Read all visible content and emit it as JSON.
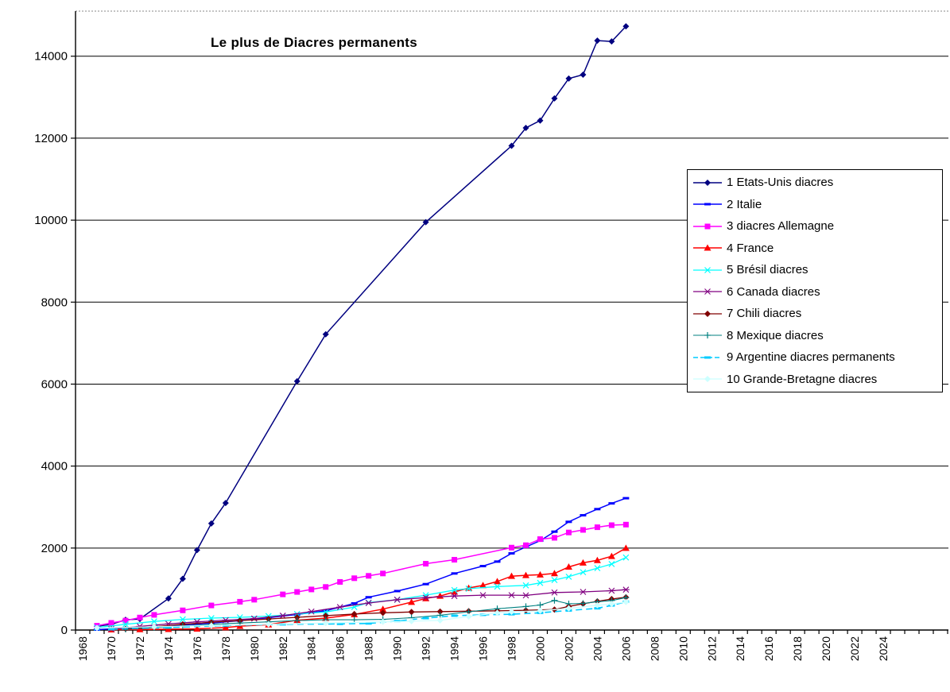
{
  "chart_data": {
    "type": "line",
    "title": "Le plus de Diacres permanents",
    "x_axis_years": [
      1968,
      2028
    ],
    "x_tick_labels": [
      "1968",
      "1970",
      "1972",
      "1974",
      "1976",
      "1978",
      "1980",
      "1982",
      "1984",
      "1986",
      "1988",
      "1990",
      "1992",
      "1994",
      "1996",
      "1998",
      "2000",
      "2002",
      "2004",
      "2006",
      "2008",
      "2010",
      "2012",
      "2014",
      "2016",
      "2018",
      "2020",
      "2022",
      "2024"
    ],
    "x_labeled_years": [
      1968,
      1970,
      1972,
      1974,
      1976,
      1978,
      1980,
      1982,
      1984,
      1986,
      1988,
      1990,
      1992,
      1994,
      1996,
      1998,
      2000,
      2002,
      2004,
      2006,
      2008,
      2010,
      2012,
      2014,
      2016,
      2018,
      2020,
      2022,
      2024
    ],
    "y_tick_labels": [
      "0",
      "2000",
      "4000",
      "6000",
      "8000",
      "10000",
      "12000",
      "14000"
    ],
    "y_ticks": [
      0,
      2000,
      4000,
      6000,
      8000,
      10000,
      12000,
      14000
    ],
    "ylim": [
      0,
      15100
    ],
    "grid": "horizontal",
    "legend_position": "right-overlay",
    "series": [
      {
        "name": "1 Etats-Unis diacres",
        "color": "#000080",
        "marker": "diamond",
        "line": "solid",
        "width": 1.5,
        "points": [
          [
            1969,
            90
          ],
          [
            1970,
            140
          ],
          [
            1971,
            250
          ],
          [
            1972,
            270
          ],
          [
            1974,
            770
          ],
          [
            1975,
            1250
          ],
          [
            1976,
            1950
          ],
          [
            1977,
            2600
          ],
          [
            1978,
            3100
          ],
          [
            1983,
            6070
          ],
          [
            1985,
            7215
          ],
          [
            1992,
            9950
          ],
          [
            1998,
            11815
          ],
          [
            1999,
            12250
          ],
          [
            2000,
            12430
          ],
          [
            2001,
            12970
          ],
          [
            2002,
            13455
          ],
          [
            2003,
            13550
          ],
          [
            2004,
            14380
          ],
          [
            2005,
            14360
          ],
          [
            2006,
            14730
          ]
        ]
      },
      {
        "name": "2 Italie",
        "color": "#0000FF",
        "marker": "dash",
        "line": "solid",
        "width": 1.5,
        "points": [
          [
            1969,
            10
          ],
          [
            1971,
            40
          ],
          [
            1973,
            80
          ],
          [
            1975,
            120
          ],
          [
            1977,
            170
          ],
          [
            1979,
            230
          ],
          [
            1981,
            300
          ],
          [
            1983,
            380
          ],
          [
            1985,
            470
          ],
          [
            1987,
            650
          ],
          [
            1988,
            800
          ],
          [
            1990,
            950
          ],
          [
            1992,
            1120
          ],
          [
            1994,
            1380
          ],
          [
            1996,
            1560
          ],
          [
            1997,
            1670
          ],
          [
            1998,
            1870
          ],
          [
            1999,
            2025
          ],
          [
            2000,
            2180
          ],
          [
            2001,
            2400
          ],
          [
            2002,
            2640
          ],
          [
            2003,
            2800
          ],
          [
            2004,
            2950
          ],
          [
            2005,
            3090
          ],
          [
            2006,
            3216
          ]
        ]
      },
      {
        "name": "3 diacres Allemagne",
        "color": "#FF00FF",
        "marker": "square",
        "line": "solid",
        "width": 1.5,
        "points": [
          [
            1969,
            105
          ],
          [
            1970,
            175
          ],
          [
            1971,
            230
          ],
          [
            1972,
            305
          ],
          [
            1973,
            370
          ],
          [
            1975,
            480
          ],
          [
            1977,
            600
          ],
          [
            1979,
            690
          ],
          [
            1980,
            740
          ],
          [
            1982,
            870
          ],
          [
            1983,
            929
          ],
          [
            1984,
            990
          ],
          [
            1985,
            1051
          ],
          [
            1986,
            1174
          ],
          [
            1987,
            1264
          ],
          [
            1988,
            1322
          ],
          [
            1989,
            1380
          ],
          [
            1992,
            1618
          ],
          [
            1994,
            1715
          ],
          [
            1998,
            2011
          ],
          [
            1999,
            2069
          ],
          [
            2000,
            2218
          ],
          [
            2001,
            2250
          ],
          [
            2002,
            2380
          ],
          [
            2003,
            2443
          ],
          [
            2004,
            2508
          ],
          [
            2005,
            2558
          ],
          [
            2006,
            2572
          ]
        ]
      },
      {
        "name": "4 France",
        "color": "#FF0000",
        "marker": "triangle",
        "line": "solid",
        "width": 1.5,
        "points": [
          [
            1970,
            10
          ],
          [
            1972,
            15
          ],
          [
            1974,
            20
          ],
          [
            1976,
            30
          ],
          [
            1978,
            60
          ],
          [
            1979,
            95
          ],
          [
            1981,
            130
          ],
          [
            1983,
            240
          ],
          [
            1985,
            290
          ],
          [
            1987,
            380
          ],
          [
            1989,
            510
          ],
          [
            1991,
            680
          ],
          [
            1992,
            770
          ],
          [
            1993,
            830
          ],
          [
            1994,
            930
          ],
          [
            1995,
            1025
          ],
          [
            1996,
            1090
          ],
          [
            1997,
            1185
          ],
          [
            1998,
            1315
          ],
          [
            1999,
            1335
          ],
          [
            2000,
            1350
          ],
          [
            2001,
            1380
          ],
          [
            2002,
            1540
          ],
          [
            2003,
            1640
          ],
          [
            2004,
            1700
          ],
          [
            2005,
            1800
          ],
          [
            2006,
            2000
          ]
        ]
      },
      {
        "name": "5 Brésil diacres",
        "color": "#00FFFF",
        "marker": "x",
        "line": "solid",
        "width": 1.3,
        "points": [
          [
            1969,
            60
          ],
          [
            1971,
            140
          ],
          [
            1973,
            210
          ],
          [
            1975,
            260
          ],
          [
            1977,
            290
          ],
          [
            1979,
            310
          ],
          [
            1981,
            340
          ],
          [
            1983,
            390
          ],
          [
            1985,
            440
          ],
          [
            1987,
            560
          ],
          [
            1988,
            670
          ],
          [
            1990,
            740
          ],
          [
            1992,
            850
          ],
          [
            1994,
            975
          ],
          [
            1995,
            1010
          ],
          [
            1997,
            1060
          ],
          [
            1999,
            1090
          ],
          [
            2000,
            1150
          ],
          [
            2001,
            1220
          ],
          [
            2002,
            1300
          ],
          [
            2003,
            1410
          ],
          [
            2004,
            1510
          ],
          [
            2005,
            1610
          ],
          [
            2006,
            1770
          ]
        ]
      },
      {
        "name": "6 Canada diacres",
        "color": "#800080",
        "marker": "asterisk",
        "line": "solid",
        "width": 1.3,
        "points": [
          [
            1970,
            25
          ],
          [
            1972,
            90
          ],
          [
            1974,
            150
          ],
          [
            1976,
            200
          ],
          [
            1978,
            240
          ],
          [
            1980,
            280
          ],
          [
            1982,
            350
          ],
          [
            1984,
            450
          ],
          [
            1986,
            560
          ],
          [
            1988,
            660
          ],
          [
            1990,
            740
          ],
          [
            1992,
            790
          ],
          [
            1994,
            830
          ],
          [
            1996,
            850
          ],
          [
            1998,
            850
          ],
          [
            1999,
            845
          ],
          [
            2001,
            915
          ],
          [
            2003,
            930
          ],
          [
            2005,
            960
          ],
          [
            2006,
            985
          ]
        ]
      },
      {
        "name": "7 Chili diacres",
        "color": "#800000",
        "marker": "diamond",
        "line": "solid",
        "width": 1.3,
        "points": [
          [
            1971,
            30
          ],
          [
            1973,
            80
          ],
          [
            1975,
            140
          ],
          [
            1977,
            190
          ],
          [
            1979,
            230
          ],
          [
            1981,
            270
          ],
          [
            1983,
            310
          ],
          [
            1985,
            350
          ],
          [
            1987,
            390
          ],
          [
            1989,
            420
          ],
          [
            1991,
            440
          ],
          [
            1993,
            450
          ],
          [
            1995,
            460
          ],
          [
            1997,
            470
          ],
          [
            1999,
            480
          ],
          [
            2001,
            500
          ],
          [
            2002,
            575
          ],
          [
            2003,
            640
          ],
          [
            2004,
            700
          ],
          [
            2005,
            755
          ],
          [
            2006,
            800
          ]
        ]
      },
      {
        "name": "8 Mexique diacres",
        "color": "#008080",
        "marker": "plus",
        "line": "solid",
        "width": 1.1,
        "points": [
          [
            1971,
            20
          ],
          [
            1973,
            60
          ],
          [
            1975,
            100
          ],
          [
            1977,
            140
          ],
          [
            1979,
            170
          ],
          [
            1981,
            200
          ],
          [
            1983,
            230
          ],
          [
            1985,
            250
          ],
          [
            1987,
            250
          ],
          [
            1989,
            260
          ],
          [
            1991,
            300
          ],
          [
            1993,
            360
          ],
          [
            1995,
            445
          ],
          [
            1997,
            520
          ],
          [
            1999,
            574
          ],
          [
            2000,
            610
          ],
          [
            2001,
            722
          ],
          [
            2002,
            640
          ],
          [
            2003,
            650
          ],
          [
            2004,
            690
          ],
          [
            2005,
            720
          ],
          [
            2006,
            790
          ]
        ]
      },
      {
        "name": "9 Argentine diacres permanents",
        "color": "#00CCFF",
        "marker": "dash",
        "line": "dashed",
        "width": 1.6,
        "points": [
          [
            1970,
            20
          ],
          [
            1974,
            60
          ],
          [
            1978,
            110
          ],
          [
            1982,
            140
          ],
          [
            1986,
            150
          ],
          [
            1988,
            160
          ],
          [
            1990,
            220
          ],
          [
            1992,
            290
          ],
          [
            1994,
            350
          ],
          [
            1996,
            370
          ],
          [
            1998,
            385
          ],
          [
            2000,
            420
          ],
          [
            2002,
            477
          ],
          [
            2004,
            530
          ],
          [
            2005,
            600
          ],
          [
            2006,
            690
          ]
        ]
      },
      {
        "name": "10 Grande-Bretagne diacres",
        "color": "#CCFFFF",
        "marker": "diamond",
        "line": "solid",
        "width": 1.3,
        "points": [
          [
            1969,
            50
          ],
          [
            1973,
            80
          ],
          [
            1977,
            110
          ],
          [
            1981,
            140
          ],
          [
            1985,
            170
          ],
          [
            1989,
            200
          ],
          [
            1991,
            215
          ],
          [
            1993,
            235
          ],
          [
            1995,
            330
          ],
          [
            1997,
            420
          ],
          [
            1998,
            445
          ],
          [
            2000,
            470
          ],
          [
            2002,
            528
          ],
          [
            2004,
            605
          ],
          [
            2005,
            638
          ],
          [
            2006,
            683
          ]
        ]
      }
    ]
  }
}
